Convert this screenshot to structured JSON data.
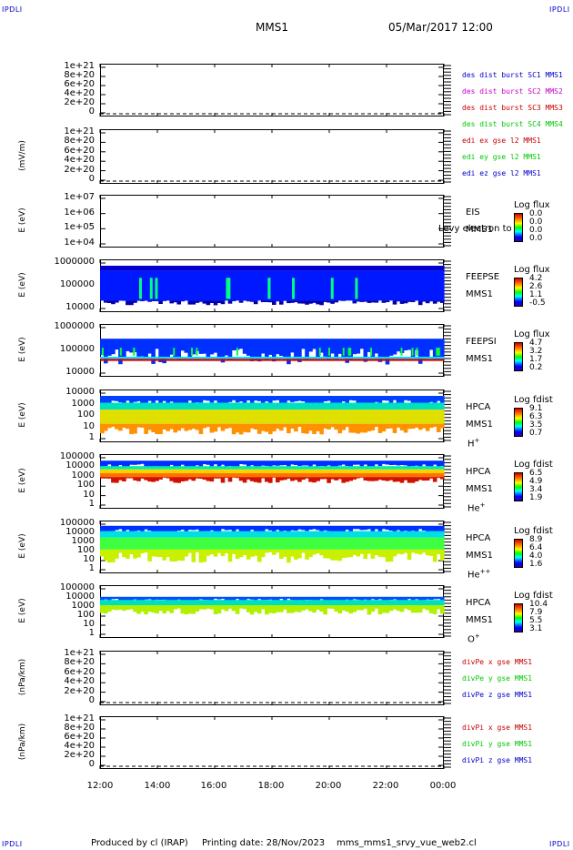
{
  "corners": {
    "tl": "IPDLI",
    "tr": "IPDLI",
    "bl": "IPDLI",
    "br": "IPDLI"
  },
  "header": {
    "spacecraft": "MMS1",
    "datetime": "05/Mar/2017 12:00"
  },
  "footer": {
    "produced": "Produced by cl (IRAP)",
    "printing": "Printing date: 28/Nov/2023",
    "file": "mms_mms1_srvy_vue_web2.cl"
  },
  "xaxis": {
    "ticks": [
      "12:00",
      "14:00",
      "16:00",
      "18:00",
      "20:00",
      "22:00",
      "00:00"
    ]
  },
  "panels": [
    {
      "id": "p1",
      "ylabel": "",
      "ticks": [
        "1e+21",
        "8e+20",
        "6e+20",
        "4e+20",
        "2e+20",
        "0"
      ],
      "legend": [
        {
          "text": "des dist burst SC1 MMS1",
          "color": "#0000c8"
        },
        {
          "text": "des dist burst SC2 MMS2",
          "color": "#c800c8"
        },
        {
          "text": "des dist burst SC3 MMS3",
          "color": "#c80000"
        },
        {
          "text": "des dist burst SC4 MMS4",
          "color": "#00c800"
        }
      ]
    },
    {
      "id": "p2",
      "ylabel": "(mV/m)",
      "ticks": [
        "1e+21",
        "8e+20",
        "6e+20",
        "4e+20",
        "2e+20",
        "0"
      ],
      "legend": [
        {
          "text": "edi ex gse l2 MMS1",
          "color": "#c80000"
        },
        {
          "text": "edi ey gse l2 MMS1",
          "color": "#00c800"
        },
        {
          "text": "edi ez gse l2 MMS1",
          "color": "#0000c8"
        }
      ]
    },
    {
      "id": "p3",
      "ylabel": "E (eV)",
      "ticks": [
        "1e+07",
        "1e+06",
        "1e+05",
        "1e+04"
      ],
      "inst": [
        "EIS",
        "MMS1"
      ],
      "extra": "Levy electron to",
      "cb_title": "Log flux",
      "cb_vals": [
        "0.0",
        "0.0",
        "0.0",
        "0.0"
      ]
    },
    {
      "id": "p4",
      "ylabel": "E (eV)",
      "ticks": [
        "1000000",
        "100000",
        "10000"
      ],
      "inst": [
        "FEEPSE",
        "MMS1"
      ],
      "cb_title": "Log flux",
      "cb_vals": [
        "4.2",
        "2.6",
        "1.1",
        "-0.5"
      ]
    },
    {
      "id": "p5",
      "ylabel": "E (eV)",
      "ticks": [
        "1000000",
        "100000",
        "10000"
      ],
      "inst": [
        "FEEPSI",
        "MMS1"
      ],
      "cb_title": "Log flux",
      "cb_vals": [
        "4.7",
        "3.2",
        "1.7",
        "0.2"
      ]
    },
    {
      "id": "p6",
      "ylabel": "E (eV)",
      "ticks": [
        "10000",
        "1000",
        "100",
        "10",
        "1"
      ],
      "inst": [
        "HPCA",
        "MMS1",
        "H+"
      ],
      "cb_title": "Log fdist",
      "cb_vals": [
        "9.1",
        "6.3",
        "3.5",
        "0.7"
      ]
    },
    {
      "id": "p7",
      "ylabel": "E (eV)",
      "ticks": [
        "100000",
        "10000",
        "1000",
        "100",
        "10",
        "1"
      ],
      "inst": [
        "HPCA",
        "MMS1",
        "He+"
      ],
      "cb_title": "Log fdist",
      "cb_vals": [
        "6.5",
        "4.9",
        "3.4",
        "1.9"
      ]
    },
    {
      "id": "p8",
      "ylabel": "E (eV)",
      "ticks": [
        "100000",
        "10000",
        "1000",
        "100",
        "10",
        "1"
      ],
      "inst": [
        "HPCA",
        "MMS1",
        "He++"
      ],
      "cb_title": "Log fdist",
      "cb_vals": [
        "8.9",
        "6.4",
        "4.0",
        "1.6"
      ]
    },
    {
      "id": "p9",
      "ylabel": "E (eV)",
      "ticks": [
        "100000",
        "10000",
        "1000",
        "100",
        "10",
        "1"
      ],
      "inst": [
        "HPCA",
        "MMS1",
        "O+"
      ],
      "cb_title": "Log fdist",
      "cb_vals": [
        "10.4",
        "7.9",
        "5.5",
        "3.1"
      ]
    },
    {
      "id": "p10",
      "ylabel": "(nPa/km)",
      "ticks": [
        "1e+21",
        "8e+20",
        "6e+20",
        "4e+20",
        "2e+20",
        "0"
      ],
      "legend": [
        {
          "text": "divPe x gse MMS1",
          "color": "#c80000"
        },
        {
          "text": "divPe y gse MMS1",
          "color": "#00c800"
        },
        {
          "text": "divPe z gse MMS1",
          "color": "#0000c8"
        }
      ]
    },
    {
      "id": "p11",
      "ylabel": "(nPa/km)",
      "ticks": [
        "1e+21",
        "8e+20",
        "6e+20",
        "4e+20",
        "2e+20",
        "0"
      ],
      "legend": [
        {
          "text": "divPi x gse MMS1",
          "color": "#c80000"
        },
        {
          "text": "divPi y gse MMS1",
          "color": "#00c800"
        },
        {
          "text": "divPi z gse MMS1",
          "color": "#0000c8"
        }
      ]
    }
  ],
  "chart_data": {
    "type": "heatmap",
    "title": "MMS1 05/Mar/2017 12:00",
    "x_ticks": [
      "12:00",
      "14:00",
      "16:00",
      "18:00",
      "20:00",
      "22:00",
      "00:00"
    ],
    "panels": [
      {
        "name": "des dist burst",
        "ylim": [
          0,
          1e+21
        ],
        "series": []
      },
      {
        "name": "edi e gse l2",
        "ylabel": "(mV/m)",
        "ylim": [
          0,
          1e+21
        ],
        "series": []
      },
      {
        "name": "EIS",
        "ylabel": "E (eV)",
        "ylim": [
          10000.0,
          10000000.0
        ],
        "colorbar": "Log flux"
      },
      {
        "name": "FEEPSE",
        "ylabel": "E (eV)",
        "ylim": [
          10000.0,
          1000000.0
        ],
        "colorbar": "Log flux",
        "crange": [
          -0.5,
          4.2
        ]
      },
      {
        "name": "FEEPSI",
        "ylabel": "E (eV)",
        "ylim": [
          10000.0,
          1000000.0
        ],
        "colorbar": "Log flux",
        "crange": [
          0.2,
          4.7
        ]
      },
      {
        "name": "HPCA H+",
        "ylabel": "E (eV)",
        "ylim": [
          1,
          10000.0
        ],
        "colorbar": "Log fdist",
        "crange": [
          0.7,
          9.1
        ]
      },
      {
        "name": "HPCA He+",
        "ylabel": "E (eV)",
        "ylim": [
          1,
          100000.0
        ],
        "colorbar": "Log fdist",
        "crange": [
          1.9,
          6.5
        ]
      },
      {
        "name": "HPCA He++",
        "ylabel": "E (eV)",
        "ylim": [
          1,
          100000.0
        ],
        "colorbar": "Log fdist",
        "crange": [
          1.6,
          8.9
        ]
      },
      {
        "name": "HPCA O+",
        "ylabel": "E (eV)",
        "ylim": [
          1,
          100000.0
        ],
        "colorbar": "Log fdist",
        "crange": [
          3.1,
          10.4
        ]
      },
      {
        "name": "divPe gse",
        "ylabel": "(nPa/km)",
        "ylim": [
          0,
          1e+21
        ],
        "series": []
      },
      {
        "name": "divPi gse",
        "ylabel": "(nPa/km)",
        "ylim": [
          0,
          1e+21
        ],
        "series": []
      }
    ]
  }
}
